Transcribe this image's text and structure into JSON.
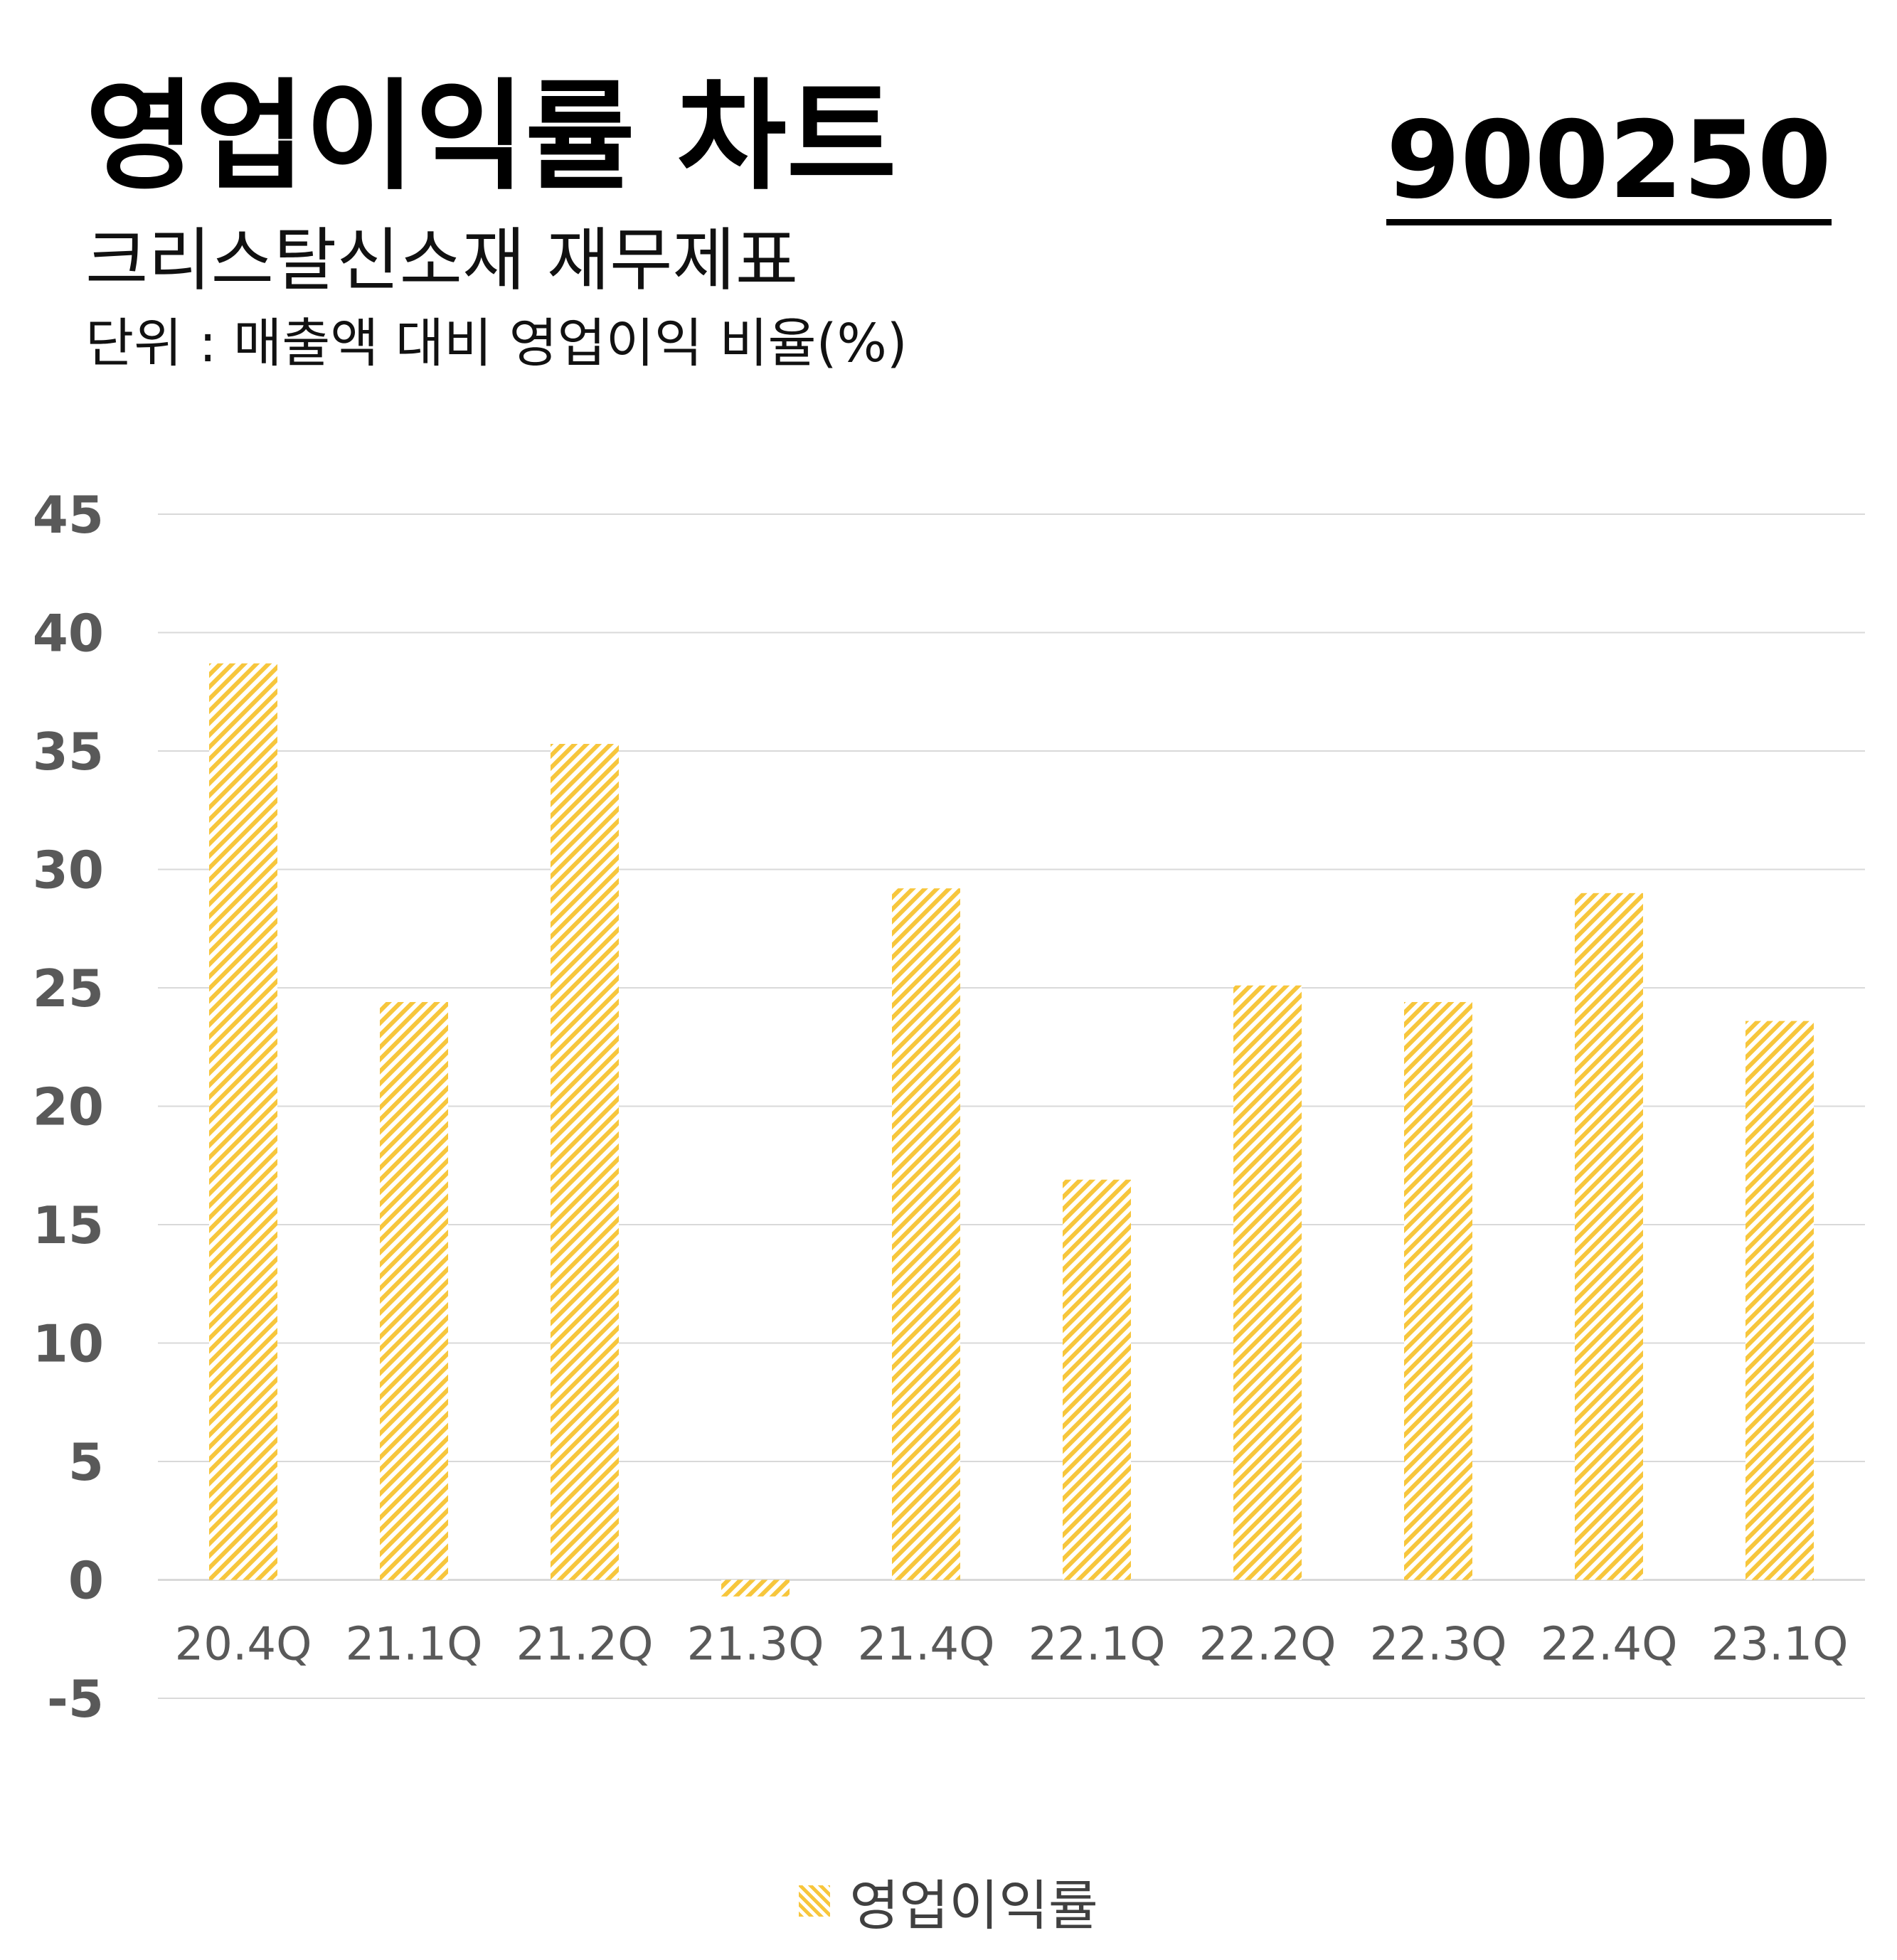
{
  "header": {
    "title": "영업이익률 차트",
    "code": "900250",
    "subtitle": "크리스탈신소재 재무제표",
    "unit": "단위 : 매출액 대비 영업이익 비율(%)"
  },
  "colors": {
    "bar": "#f7c63c",
    "grid": "#d9d9d9",
    "tick": "#595959",
    "category": "#595959"
  },
  "chart_data": {
    "type": "bar",
    "categories": [
      "20.4Q",
      "21.1Q",
      "21.2Q",
      "21.3Q",
      "21.4Q",
      "22.1Q",
      "22.2Q",
      "22.3Q",
      "22.4Q",
      "23.1Q"
    ],
    "series": [
      {
        "name": "영업이익률",
        "values": [
          38.7,
          24.4,
          35.3,
          -0.7,
          29.2,
          16.9,
          25.1,
          24.4,
          29.0,
          23.6
        ]
      }
    ],
    "yticks": [
      -5,
      0,
      5,
      10,
      15,
      20,
      25,
      30,
      35,
      40,
      45
    ],
    "ylim": [
      -5,
      45
    ],
    "grid": true,
    "legend": "bottom-center"
  }
}
